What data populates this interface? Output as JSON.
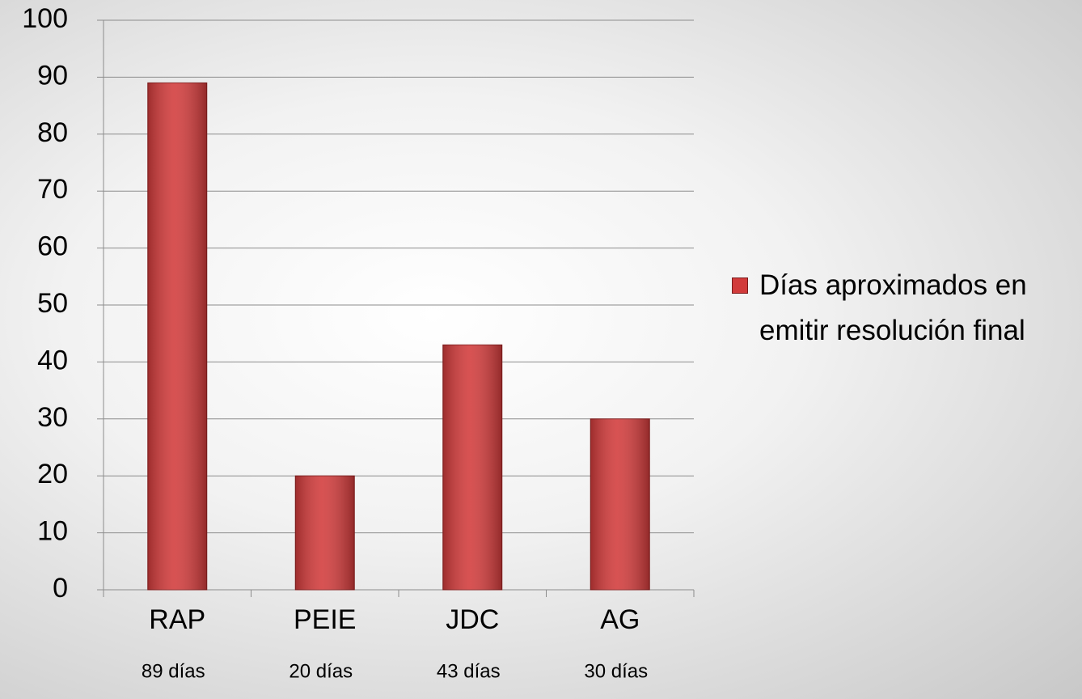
{
  "chart_data": {
    "type": "bar",
    "categories": [
      "RAP",
      "PEIE",
      "JDC",
      "AG"
    ],
    "series": [
      {
        "name": "Días aproximados en emitir resolución final",
        "color": "#d23b3b",
        "values": [
          89,
          20,
          43,
          30
        ]
      }
    ],
    "value_labels": [
      "89 días",
      "20 días",
      "43 días",
      "30 días"
    ],
    "ylim": [
      0,
      100
    ],
    "yticks": [
      0,
      10,
      20,
      30,
      40,
      50,
      60,
      70,
      80,
      90,
      100
    ],
    "grid": true,
    "legend": "right"
  }
}
